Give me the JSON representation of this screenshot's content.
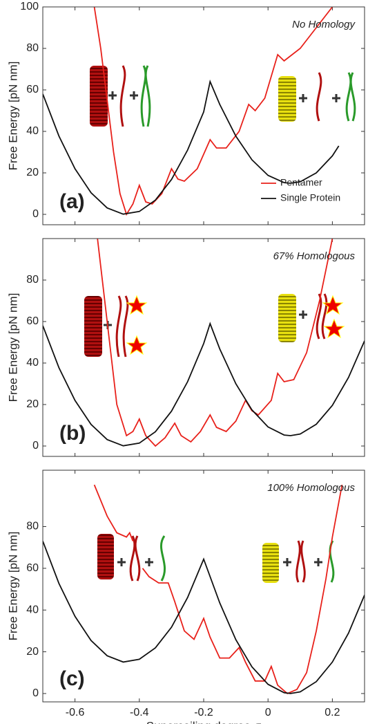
{
  "chart_data": [
    {
      "type": "line",
      "ylabel": "Free Energy [pN nm]",
      "annotation": "No Homology",
      "panel_label": "(a)",
      "xlim": [
        -0.7,
        0.3
      ],
      "xticks": [
        -0.6,
        -0.4,
        -0.2,
        0,
        0.2
      ],
      "ylim": [
        -5,
        100
      ],
      "yticks": [
        0,
        20,
        40,
        60,
        80,
        100
      ],
      "legend": "lower right",
      "series": [
        {
          "name": "Pentamer",
          "color": "#e8201a",
          "x": [
            -0.54,
            -0.52,
            -0.5,
            -0.48,
            -0.46,
            -0.44,
            -0.42,
            -0.4,
            -0.38,
            -0.36,
            -0.33,
            -0.3,
            -0.28,
            -0.26,
            -0.22,
            -0.18,
            -0.16,
            -0.13,
            -0.09,
            -0.06,
            -0.04,
            -0.01,
            0.03,
            0.05,
            0.1,
            0.15,
            0.2
          ],
          "values": [
            100,
            80,
            55,
            30,
            10,
            0,
            5,
            14,
            6,
            5,
            10,
            22,
            17,
            16,
            22,
            36,
            32,
            32,
            40,
            53,
            50,
            56,
            77,
            74,
            80,
            90,
            100
          ]
        },
        {
          "name": "Single Protein",
          "color": "#111111",
          "x": [
            -0.7,
            -0.65,
            -0.6,
            -0.55,
            -0.5,
            -0.45,
            -0.4,
            -0.35,
            -0.3,
            -0.25,
            -0.2,
            -0.18,
            -0.15,
            -0.1,
            -0.05,
            0,
            0.05,
            0.07,
            0.1,
            0.15,
            0.2,
            0.22
          ],
          "values": [
            58,
            37.8,
            22,
            10.4,
            3.1,
            0.1,
            1.4,
            6.9,
            16.8,
            31,
            49.4,
            64,
            53,
            37.7,
            26.3,
            18.8,
            15.3,
            15,
            15.7,
            20,
            28.2,
            33
          ]
        }
      ]
    },
    {
      "type": "line",
      "ylabel": "Free Energy [pN nm]",
      "annotation": "67% Homologous",
      "panel_label": "(b)",
      "xlim": [
        -0.7,
        0.3
      ],
      "xticks": [
        -0.6,
        -0.4,
        -0.2,
        0,
        0.2
      ],
      "ylim": [
        -5,
        100
      ],
      "yticks": [
        0,
        20,
        40,
        60,
        80
      ],
      "series": [
        {
          "name": "Pentamer",
          "color": "#e8201a",
          "x": [
            -0.53,
            -0.5,
            -0.47,
            -0.44,
            -0.42,
            -0.4,
            -0.38,
            -0.35,
            -0.32,
            -0.29,
            -0.27,
            -0.24,
            -0.21,
            -0.18,
            -0.16,
            -0.13,
            -0.1,
            -0.07,
            -0.05,
            -0.03,
            0.01,
            0.03,
            0.05,
            0.08,
            0.12,
            0.16,
            0.2
          ],
          "values": [
            100,
            60,
            20,
            5,
            7,
            13,
            5,
            0,
            4,
            11,
            5,
            2,
            7,
            15,
            9,
            7,
            12,
            22,
            17,
            15,
            22,
            35,
            31,
            32,
            45,
            70,
            100
          ]
        },
        {
          "name": "Single Protein",
          "color": "#111111",
          "x": [
            -0.7,
            -0.65,
            -0.6,
            -0.55,
            -0.5,
            -0.45,
            -0.4,
            -0.35,
            -0.3,
            -0.25,
            -0.2,
            -0.18,
            -0.15,
            -0.1,
            -0.05,
            0,
            0.05,
            0.07,
            0.1,
            0.15,
            0.2,
            0.25,
            0.3
          ],
          "values": [
            58,
            37.8,
            22,
            10.4,
            3.1,
            0.1,
            1.4,
            6.9,
            16.8,
            31,
            49.4,
            59,
            46.8,
            30,
            17.4,
            9.2,
            5.3,
            5,
            5.8,
            10.5,
            19.6,
            33,
            50.7
          ]
        }
      ]
    },
    {
      "type": "line",
      "ylabel": "Free Energy [pN nm]",
      "xlabel": "Supercoiling degree  σ",
      "annotation": "100% Homologous",
      "panel_label": "(c)",
      "xlim": [
        -0.7,
        0.3
      ],
      "xticks": [
        -0.6,
        -0.4,
        -0.2,
        0,
        0.2
      ],
      "ylim": [
        -4,
        107
      ],
      "yticks": [
        0,
        20,
        40,
        60,
        80
      ],
      "series": [
        {
          "name": "Pentamer",
          "color": "#e8201a",
          "x": [
            -0.54,
            -0.5,
            -0.47,
            -0.44,
            -0.43,
            -0.42,
            -0.405,
            -0.39,
            -0.37,
            -0.34,
            -0.31,
            -0.29,
            -0.26,
            -0.23,
            -0.2,
            -0.18,
            -0.15,
            -0.12,
            -0.09,
            -0.07,
            -0.04,
            -0.01,
            0.01,
            0.03,
            0.06,
            0.09,
            0.12,
            0.15,
            0.18,
            0.2,
            0.23
          ],
          "values": [
            100,
            85,
            77,
            75,
            77,
            73,
            null,
            60,
            56,
            53,
            53,
            44,
            30,
            26,
            36,
            27,
            17,
            17,
            22,
            15,
            6,
            6,
            13,
            4,
            0,
            2,
            10,
            30,
            55,
            75,
            100
          ]
        },
        {
          "name": "Single Protein",
          "color": "#111111",
          "x": [
            -0.7,
            -0.65,
            -0.6,
            -0.55,
            -0.5,
            -0.45,
            -0.4,
            -0.35,
            -0.3,
            -0.25,
            -0.2,
            -0.15,
            -0.1,
            -0.05,
            0,
            0.05,
            0.07,
            0.1,
            0.15,
            0.2,
            0.25,
            0.3
          ],
          "values": [
            73,
            52.8,
            37,
            25.4,
            18.1,
            15.1,
            16.4,
            21.9,
            31.8,
            46,
            64.4,
            43.4,
            25.8,
            12.8,
            4.4,
            0.4,
            0,
            0.8,
            5.7,
            15.1,
            28.9,
            47.2
          ]
        }
      ]
    }
  ]
}
